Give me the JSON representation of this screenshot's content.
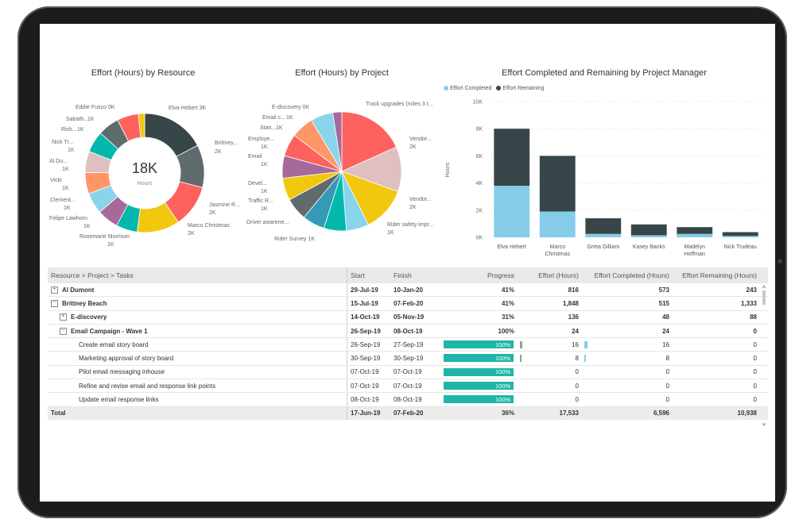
{
  "titles": {
    "resource": "Effort (Hours) by Resource",
    "project": "Effort (Hours) by Project",
    "manager": "Effort Completed and Remaining by Project Manager"
  },
  "donut": {
    "center_value": "18K",
    "center_label": "Hours",
    "labels": [
      {
        "text": "Eddie Fusco 0K"
      },
      {
        "text": "Sabath..."
      },
      {
        "text": "1K"
      },
      {
        "text": "Rick..."
      },
      {
        "text": "1K"
      },
      {
        "text": "Nick Tr..."
      },
      {
        "text": "1K"
      },
      {
        "text": "Al Du..."
      },
      {
        "text": "1K"
      },
      {
        "text": "Vicki"
      },
      {
        "text": "1K"
      },
      {
        "text": "Clement..."
      },
      {
        "text": "1K"
      },
      {
        "text": "Felipe Lawhorn"
      },
      {
        "text": "1K"
      },
      {
        "text": "Rosemarie Morrison"
      },
      {
        "text": "1K"
      },
      {
        "text": "Elva Hebert 3K"
      },
      {
        "text": "Brittney..."
      },
      {
        "text": "2K"
      },
      {
        "text": "Jasmine R..."
      },
      {
        "text": "2K"
      },
      {
        "text": "Marco Christmas"
      },
      {
        "text": "2K"
      }
    ]
  },
  "pie": {
    "labels": [
      {
        "text": "E-discovery 0K"
      },
      {
        "text": "Email c..."
      },
      {
        "text": "1K"
      },
      {
        "text": "Stati..."
      },
      {
        "text": "1K"
      },
      {
        "text": "Employe..."
      },
      {
        "text": "1K"
      },
      {
        "text": "Email"
      },
      {
        "text": "1K"
      },
      {
        "text": "Devel..."
      },
      {
        "text": "1K"
      },
      {
        "text": "Traffic R..."
      },
      {
        "text": "1K"
      },
      {
        "text": "Driver awarene..."
      },
      {
        "text": "Rider Survey 1K"
      },
      {
        "text": "Track upgrades (miles 3 t..."
      },
      {
        "text": "Vendor..."
      },
      {
        "text": "2K"
      },
      {
        "text": "Vendor..."
      },
      {
        "text": "2K"
      },
      {
        "text": "Rider safety impr..."
      },
      {
        "text": "1K"
      }
    ]
  },
  "colors": {
    "completed": "#84ccea",
    "remaining": "#374649",
    "progress": "#1fb5a8"
  },
  "chart_data": [
    {
      "type": "pie",
      "title": "Effort (Hours) by Resource",
      "slices": [
        {
          "name": "Elva Hebert",
          "value": 3
        },
        {
          "name": "Brittney...",
          "value": 2
        },
        {
          "name": "Jasmine R...",
          "value": 2
        },
        {
          "name": "Marco Christmas",
          "value": 2
        },
        {
          "name": "Rosemarie Morrison",
          "value": 1
        },
        {
          "name": "Felipe Lawhorn",
          "value": 1
        },
        {
          "name": "Clement...",
          "value": 1
        },
        {
          "name": "Vicki",
          "value": 1
        },
        {
          "name": "Al Du...",
          "value": 1
        },
        {
          "name": "Nick Tr...",
          "value": 1
        },
        {
          "name": "Rick...",
          "value": 1
        },
        {
          "name": "Sabath...",
          "value": 1
        },
        {
          "name": "Eddie Fusco",
          "value": 0.3
        }
      ],
      "colors": [
        "#374649",
        "#5f6b6d",
        "#fd625e",
        "#f2c80f",
        "#01b8aa",
        "#a66999",
        "#8ad4eb",
        "#fe9666",
        "#dfbfbf",
        "#01b8aa",
        "#5f6b6d",
        "#fd625e",
        "#f2c80f",
        "#8ad4eb"
      ]
    },
    {
      "type": "pie",
      "title": "Effort (Hours) by Project",
      "slices": [
        {
          "name": "Track upgrades (miles 3 t...",
          "value": 3
        },
        {
          "name": "Vendor... A",
          "value": 2
        },
        {
          "name": "Vendor... B",
          "value": 2
        },
        {
          "name": "Rider safety impr...",
          "value": 1
        },
        {
          "name": "Rider Survey",
          "value": 1
        },
        {
          "name": "Driver awarene...",
          "value": 1
        },
        {
          "name": "Traffic R...",
          "value": 1
        },
        {
          "name": "Devel...",
          "value": 1
        },
        {
          "name": "Email",
          "value": 1
        },
        {
          "name": "Employe...",
          "value": 1
        },
        {
          "name": "Stati...",
          "value": 1
        },
        {
          "name": "Email c...",
          "value": 1
        },
        {
          "name": "E-discovery",
          "value": 0.4
        }
      ],
      "colors": [
        "#fd625e",
        "#dfbfbf",
        "#f2c80f",
        "#8ad4eb",
        "#01b8aa",
        "#3599b8",
        "#5f6b6d",
        "#f2c80f",
        "#a66999",
        "#fd625e",
        "#fe9666",
        "#8ad4eb",
        "#a66999",
        "#fd625e",
        "#374649",
        "#01b8aa"
      ]
    },
    {
      "type": "bar",
      "stacked": true,
      "title": "Effort Completed and Remaining by Project Manager",
      "categories": [
        "Elva Hebert",
        "Marco Christmas",
        "Greta Gilliam",
        "Kasey Banks",
        "Madelyn Hoffman",
        "Nick Trudeau"
      ],
      "series": [
        {
          "name": "Effort Completed",
          "values": [
            3800,
            1900,
            250,
            150,
            250,
            100
          ]
        },
        {
          "name": "Effort Remaining",
          "values": [
            4200,
            4100,
            1150,
            800,
            500,
            280
          ]
        }
      ],
      "ylabel": "Hours",
      "ylim": [
        0,
        10000
      ],
      "yticks": [
        "0K",
        "2K",
        "4K",
        "6K",
        "8K",
        "10K"
      ],
      "legend": "top-left"
    }
  ],
  "table": {
    "headers": {
      "name": "Resource > Project > Tasks",
      "start": "Start",
      "finish": "Finish",
      "progress": "Progress",
      "effort": "Effort (Hours)",
      "completed": "Effort Completed (Hours)",
      "remaining": "Effort Remaining (Hours)"
    },
    "rows": [
      {
        "name": "Al Dumont",
        "level": 0,
        "exp": "+",
        "bold": true,
        "start": "29-Jul-19",
        "finish": "10-Jan-20",
        "progress": "41%",
        "effort": "816",
        "completed": "573",
        "remaining": "243"
      },
      {
        "name": "Brittney Beach",
        "level": 0,
        "exp": "−",
        "bold": true,
        "start": "15-Jul-19",
        "finish": "07-Feb-20",
        "progress": "41%",
        "effort": "1,848",
        "completed": "515",
        "remaining": "1,333"
      },
      {
        "name": "E-discovery",
        "level": 1,
        "exp": "+",
        "bold": true,
        "start": "14-Oct-19",
        "finish": "05-Nov-19",
        "progress": "31%",
        "effort": "136",
        "completed": "48",
        "remaining": "88"
      },
      {
        "name": "Email Campaign - Wave 1",
        "level": 1,
        "exp": "−",
        "bold": true,
        "start": "26-Sep-19",
        "finish": "08-Oct-19",
        "progress": "100%",
        "effort": "24",
        "completed": "24",
        "remaining": "0"
      },
      {
        "name": "Create email story board",
        "level": 2,
        "start": "26-Sep-19",
        "finish": "27-Sep-19",
        "progress": "100%",
        "pct": 1.0,
        "effort": "16",
        "eff_frac": 0.04,
        "completed": "16",
        "comp_frac": 0.04,
        "remaining": "0"
      },
      {
        "name": "Marketing approval of story board",
        "level": 2,
        "start": "30-Sep-19",
        "finish": "30-Sep-19",
        "progress": "100%",
        "pct": 1.0,
        "effort": "8",
        "eff_frac": 0.02,
        "completed": "8",
        "comp_frac": 0.02,
        "remaining": "0"
      },
      {
        "name": "Pilot email messaging inhouse",
        "level": 2,
        "start": "07-Oct-19",
        "finish": "07-Oct-19",
        "progress": "100%",
        "pct": 1.0,
        "effort": "0",
        "completed": "0",
        "remaining": "0"
      },
      {
        "name": "Refine and revise email and response link points",
        "level": 2,
        "start": "07-Oct-19",
        "finish": "07-Oct-19",
        "progress": "100%",
        "pct": 1.0,
        "effort": "0",
        "completed": "0",
        "remaining": "0"
      },
      {
        "name": "Update email response links",
        "level": 2,
        "start": "08-Oct-19",
        "finish": "08-Oct-19",
        "progress": "100%",
        "pct": 1.0,
        "effort": "0",
        "completed": "0",
        "remaining": "0"
      }
    ],
    "total": {
      "name": "Total",
      "start": "17-Jun-19",
      "finish": "07-Feb-20",
      "progress": "36%",
      "effort": "17,533",
      "completed": "6,596",
      "remaining": "10,938"
    }
  }
}
